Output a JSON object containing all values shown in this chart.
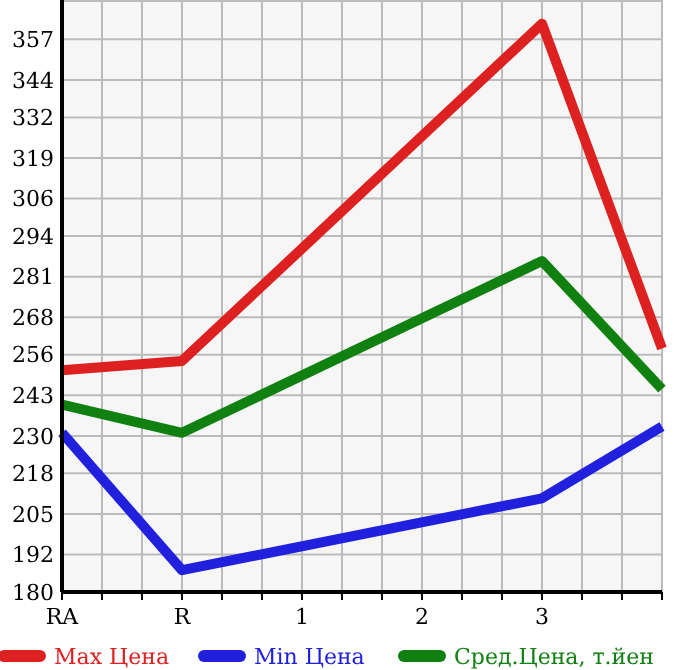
{
  "chart_data": {
    "type": "line",
    "categories": [
      "RA",
      "R",
      "1",
      "2",
      "3",
      null
    ],
    "series": [
      {
        "name": "Max Цена",
        "color": "#dd2020",
        "values": [
          251,
          254,
          null,
          null,
          362,
          258
        ]
      },
      {
        "name": "Min Цена",
        "color": "#2020dd",
        "values": [
          231,
          187,
          null,
          null,
          210,
          233
        ]
      },
      {
        "name": "Сред.Цена, т.йен",
        "color": "#108010",
        "values": [
          240,
          231,
          null,
          null,
          286,
          245
        ]
      }
    ],
    "ylim": [
      180,
      369.6
    ],
    "yticks": [
      180,
      192,
      205,
      218,
      230,
      243,
      256,
      268,
      281,
      294,
      306,
      319,
      332,
      344,
      357
    ],
    "grid": true,
    "legend": "bottom",
    "marker": "none",
    "line_style": "solid"
  }
}
